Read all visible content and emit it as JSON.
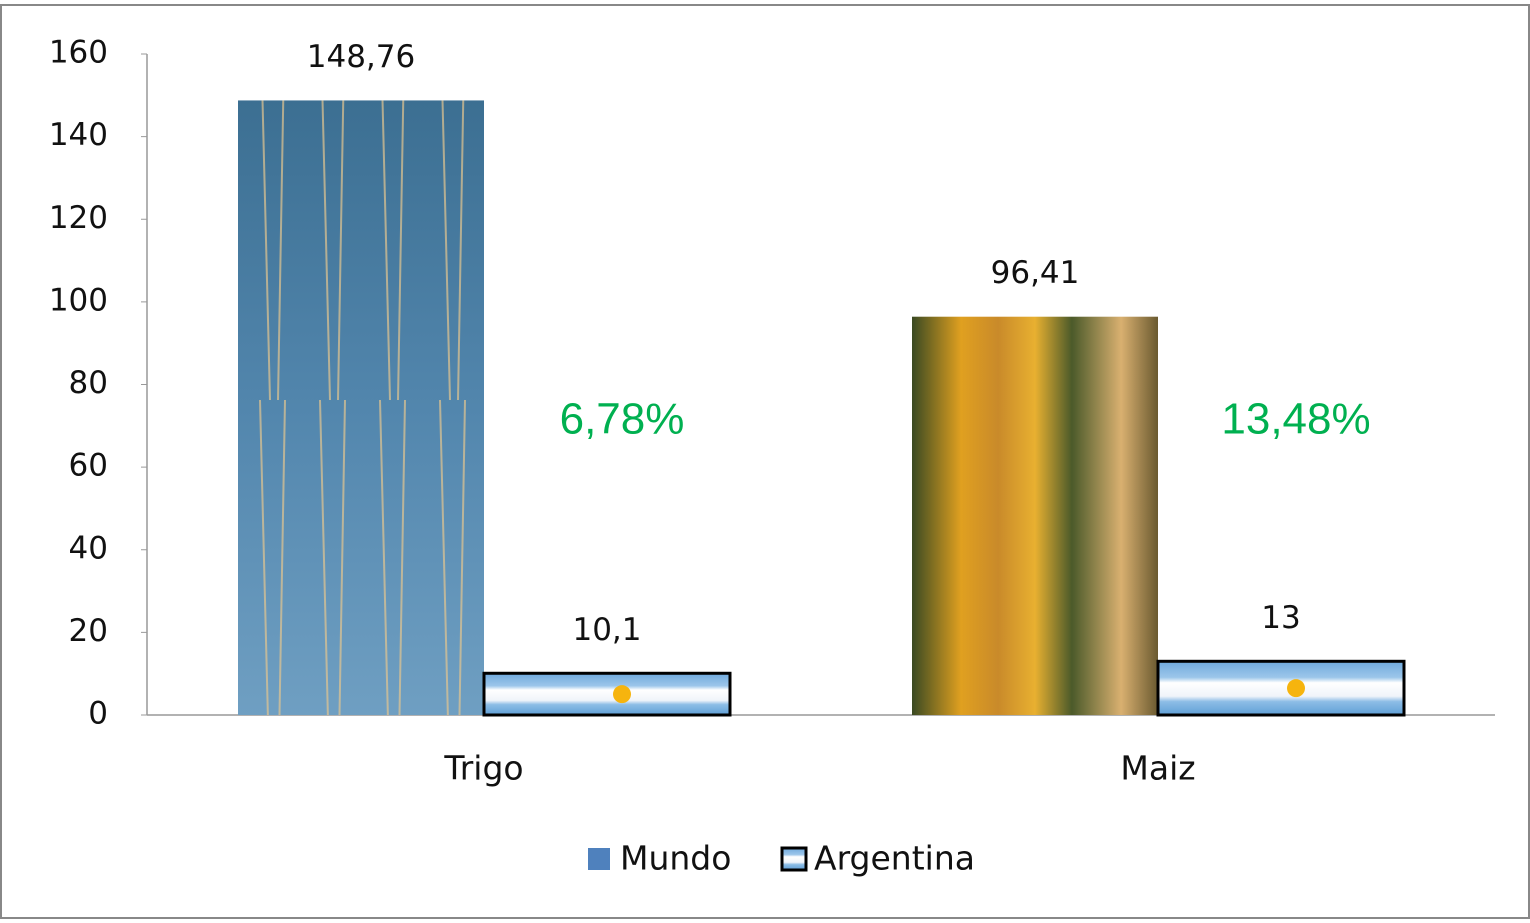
{
  "chart_data": {
    "type": "bar",
    "categories": [
      "Trigo",
      "Maiz"
    ],
    "series": [
      {
        "name": "Mundo",
        "color": "#4f81bd",
        "values": [
          148.76,
          96.41
        ],
        "value_labels": [
          "148,76",
          "96,41"
        ]
      },
      {
        "name": "Argentina",
        "color": "#74acdf",
        "values": [
          10.1,
          13
        ],
        "value_labels": [
          "10,1",
          "13"
        ]
      }
    ],
    "annotations": [
      "6,78%",
      "13,48%"
    ],
    "annotation_color": "#00b050",
    "ylim": [
      0,
      160
    ],
    "yticks": [
      0,
      20,
      40,
      60,
      80,
      100,
      120,
      140,
      160
    ],
    "grid": false,
    "legend": "bottom"
  }
}
